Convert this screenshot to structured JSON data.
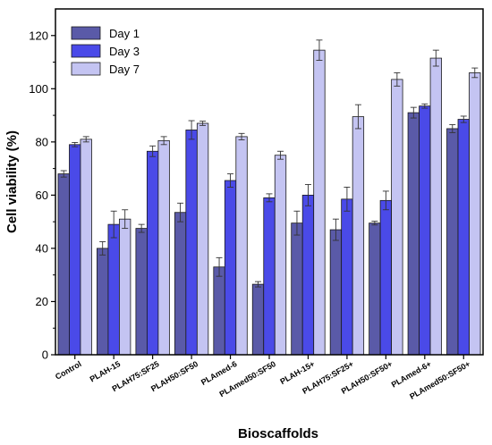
{
  "chart_data": {
    "type": "bar",
    "title": "",
    "xlabel": "Bioscaffolds",
    "ylabel": "Cell viability (%)",
    "ylim": [
      0,
      130
    ],
    "yticks": [
      0,
      20,
      40,
      60,
      80,
      100,
      120
    ],
    "grid": false,
    "legend_position": "top-left",
    "categories": [
      "Control",
      "PLAH-15",
      "PLAH75:SF25",
      "PLAH50:SF50",
      "PLAmed-6",
      "PLAmed50:SF50",
      "PLAH-15+",
      "PLAH75:SF25+",
      "PLAH50:SF50+",
      "PLAmed-6+",
      "PLAmed50:SF50+"
    ],
    "series": [
      {
        "name": "Day 1",
        "color": "#5a5aa8",
        "values": [
          68,
          40,
          47.5,
          53.5,
          33,
          26.5,
          49.5,
          47,
          49.5,
          91,
          85
        ],
        "errors": [
          1.2,
          2.5,
          1.5,
          3.5,
          3.5,
          1.0,
          4.5,
          4.0,
          0.7,
          2.0,
          1.5
        ]
      },
      {
        "name": "Day 3",
        "color": "#4a4ae8",
        "values": [
          79,
          49,
          76.5,
          84.5,
          65.5,
          59,
          60,
          58.5,
          58,
          93.5,
          88.5
        ],
        "errors": [
          0.8,
          5.0,
          2.0,
          3.5,
          2.5,
          1.5,
          4.0,
          4.5,
          3.5,
          0.8,
          1.2
        ]
      },
      {
        "name": "Day 7",
        "color": "#c4c4f2",
        "values": [
          81,
          51,
          80.5,
          87,
          82,
          75,
          114.5,
          89.5,
          103.5,
          111.5,
          106
        ],
        "errors": [
          1.0,
          3.5,
          1.5,
          0.8,
          1.2,
          1.5,
          3.8,
          4.5,
          2.5,
          3.0,
          1.8
        ]
      }
    ]
  }
}
